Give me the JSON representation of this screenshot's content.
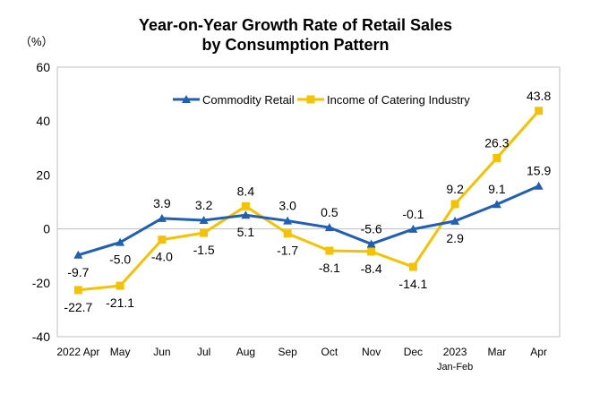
{
  "chart_data": {
    "type": "line",
    "title": "Year-on-Year Growth Rate of Retail Sales",
    "subtitle": "by Consumption Pattern",
    "ylabel": "（%）",
    "ylim": [
      -40,
      60
    ],
    "yticks": [
      -40,
      -20,
      0,
      20,
      40,
      60
    ],
    "grid": false,
    "legend_position": "top-center",
    "categories": [
      "2022 Apr",
      "May",
      "Jun",
      "Jul",
      "Aug",
      "Sep",
      "Oct",
      "Nov",
      "Dec",
      "2023|Jan-Feb",
      "Mar",
      "Apr"
    ],
    "series": [
      {
        "name": "Commodity Retail",
        "color": "#1f5fb4",
        "marker": "triangle",
        "values": [
          -9.7,
          -5.0,
          3.9,
          3.2,
          5.1,
          3.0,
          0.5,
          -5.6,
          -0.1,
          2.9,
          9.1,
          15.9
        ],
        "labels": [
          "-9.7",
          "-5.0",
          "3.9",
          "3.2",
          "5.1",
          "3.0",
          "0.5",
          "-5.6",
          "-0.1",
          "2.9",
          "9.1",
          "15.9"
        ]
      },
      {
        "name": "Income of Catering Industry",
        "color": "#f5c200",
        "marker": "square",
        "values": [
          -22.7,
          -21.1,
          -4.0,
          -1.5,
          8.4,
          -1.7,
          -8.1,
          -8.4,
          -14.1,
          9.2,
          26.3,
          43.8
        ],
        "labels": [
          "-22.7",
          "-21.1",
          "-4.0",
          "-1.5",
          "8.4",
          "-1.7",
          "-8.1",
          "-8.4",
          "-14.1",
          "9.2",
          "26.3",
          "43.8"
        ]
      }
    ]
  }
}
